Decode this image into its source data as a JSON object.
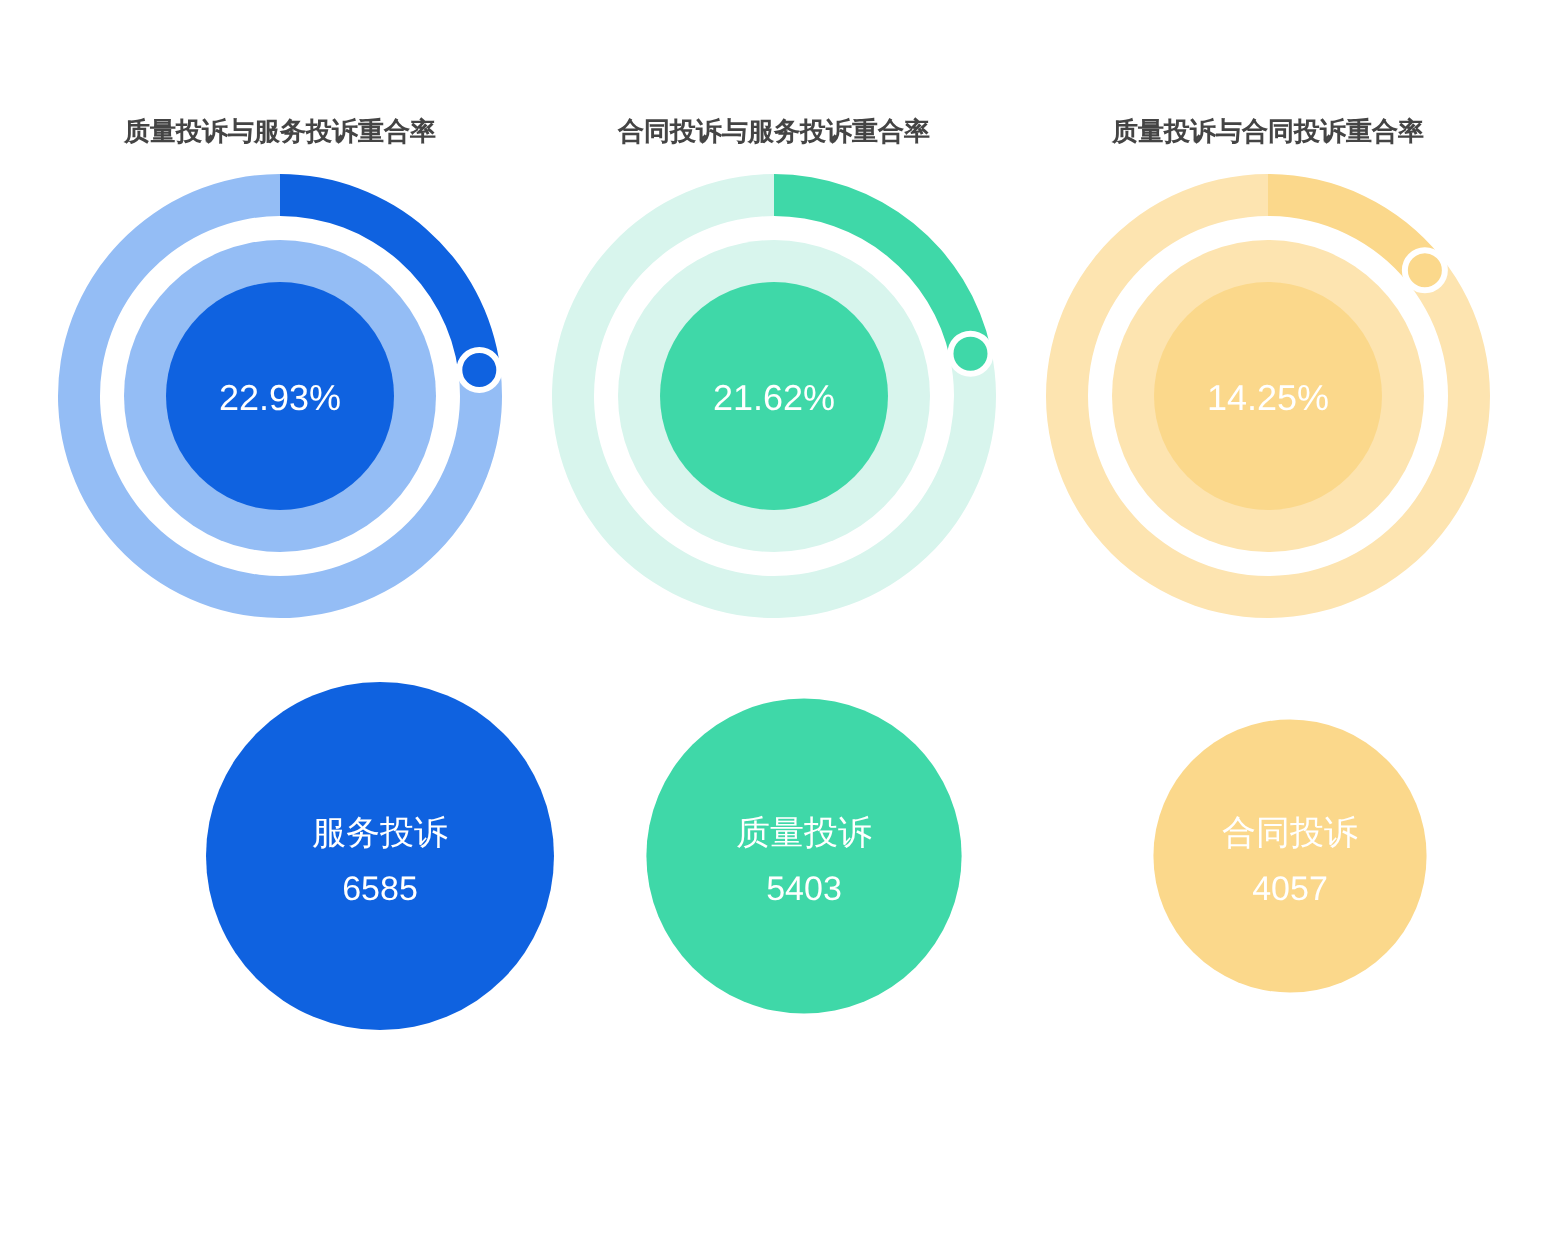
{
  "chart_data": [
    {
      "type": "donut",
      "title": "质量投诉与服务投诉重合率",
      "categories": [
        null,
        null
      ],
      "values": [
        22.93,
        77.07
      ],
      "colors": [
        "#0f62e0",
        "#94bdf5"
      ],
      "annotations": [
        "22.93%"
      ]
    },
    {
      "type": "donut",
      "title": "合同投诉与服务投诉重合率",
      "categories": [
        null,
        null
      ],
      "values": [
        21.62,
        78.38
      ],
      "colors": [
        "#3fd8a8",
        "#d8f5ed"
      ],
      "annotations": [
        "21.62%"
      ]
    },
    {
      "type": "donut",
      "title": "质量投诉与合同投诉重合率",
      "categories": [
        null,
        null
      ],
      "values": [
        14.25,
        85.75
      ],
      "colors": [
        "#fbd88b",
        "#fde4b0"
      ],
      "annotations": [
        "14.25%"
      ]
    },
    {
      "type": "other",
      "categories": [
        "服务投诉",
        "质量投诉",
        "合同投诉"
      ],
      "values": [
        6585,
        5403,
        4057
      ],
      "colors": [
        "#0f62e0",
        "#3fd8a8",
        "#fbd88b"
      ],
      "data_labels": true
    }
  ]
}
